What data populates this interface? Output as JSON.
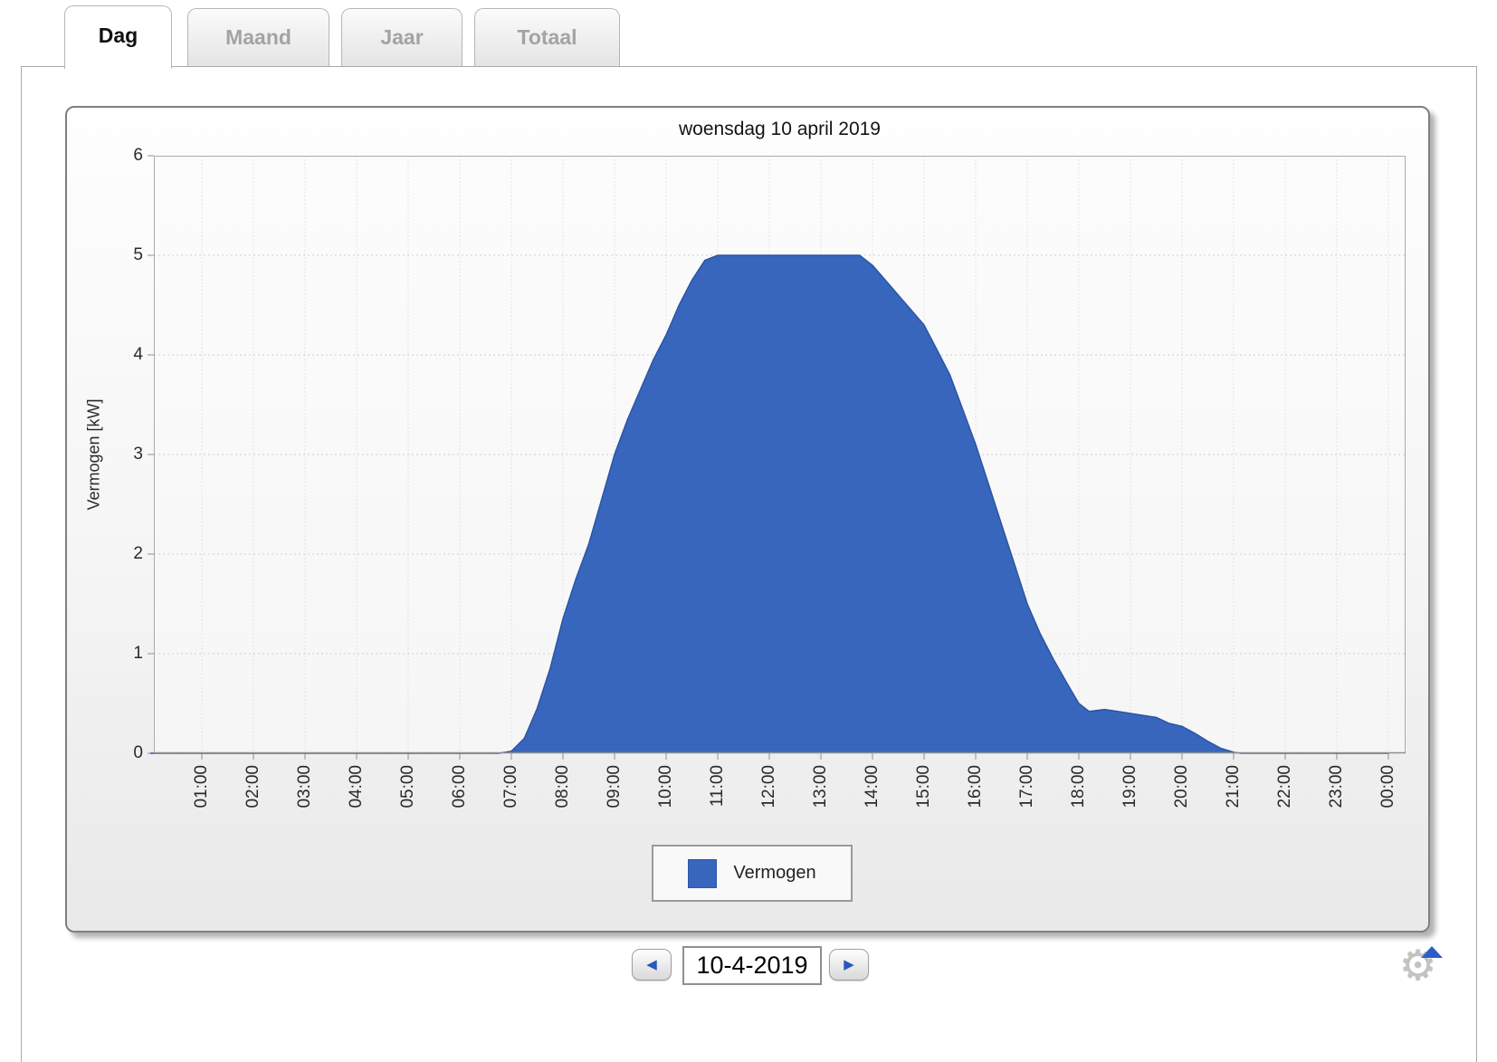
{
  "tabs": [
    {
      "label": "Dag",
      "active": true
    },
    {
      "label": "Maand",
      "active": false
    },
    {
      "label": "Jaar",
      "active": false
    },
    {
      "label": "Totaal",
      "active": false
    }
  ],
  "chart": {
    "title": "woensdag 10 april 2019",
    "y_axis": {
      "label": "Vermogen [kW]"
    },
    "legend": {
      "label": "Vermogen",
      "color": "#3866bd"
    }
  },
  "chart_data": {
    "type": "area",
    "title": "woensdag 10 april 2019",
    "xlabel": "",
    "ylabel": "Vermogen [kW]",
    "ylim": [
      0,
      6
    ],
    "x_unit": "hour_of_day",
    "grid": true,
    "legend_position": "bottom-center",
    "x_ticks": [
      "01:00",
      "02:00",
      "03:00",
      "04:00",
      "05:00",
      "06:00",
      "07:00",
      "08:00",
      "09:00",
      "10:00",
      "11:00",
      "12:00",
      "13:00",
      "14:00",
      "15:00",
      "16:00",
      "17:00",
      "18:00",
      "19:00",
      "20:00",
      "21:00",
      "22:00",
      "23:00",
      "00:00"
    ],
    "y_ticks": [
      "6",
      "5",
      "4",
      "3",
      "2",
      "1",
      "0"
    ],
    "series": [
      {
        "name": "Vermogen",
        "color": "#3866bd",
        "line_color": "#2b55a5",
        "points": [
          [
            0,
            0
          ],
          [
            1,
            0
          ],
          [
            2,
            0
          ],
          [
            3,
            0
          ],
          [
            4,
            0
          ],
          [
            5,
            0
          ],
          [
            6,
            0
          ],
          [
            6.75,
            0
          ],
          [
            7.0,
            0.02
          ],
          [
            7.25,
            0.15
          ],
          [
            7.5,
            0.45
          ],
          [
            7.75,
            0.85
          ],
          [
            8.0,
            1.35
          ],
          [
            8.25,
            1.75
          ],
          [
            8.5,
            2.1
          ],
          [
            8.75,
            2.55
          ],
          [
            9.0,
            3.0
          ],
          [
            9.25,
            3.35
          ],
          [
            9.5,
            3.65
          ],
          [
            9.75,
            3.95
          ],
          [
            10.0,
            4.2
          ],
          [
            10.25,
            4.5
          ],
          [
            10.5,
            4.75
          ],
          [
            10.75,
            4.95
          ],
          [
            11.0,
            5.0
          ],
          [
            13.75,
            5.0
          ],
          [
            14.0,
            4.9
          ],
          [
            14.25,
            4.75
          ],
          [
            14.5,
            4.6
          ],
          [
            14.75,
            4.45
          ],
          [
            15.0,
            4.3
          ],
          [
            15.25,
            4.05
          ],
          [
            15.5,
            3.8
          ],
          [
            15.75,
            3.45
          ],
          [
            16.0,
            3.1
          ],
          [
            16.25,
            2.7
          ],
          [
            16.5,
            2.3
          ],
          [
            16.75,
            1.9
          ],
          [
            17.0,
            1.5
          ],
          [
            17.25,
            1.2
          ],
          [
            17.5,
            0.95
          ],
          [
            17.75,
            0.72
          ],
          [
            18.0,
            0.5
          ],
          [
            18.2,
            0.42
          ],
          [
            18.5,
            0.44
          ],
          [
            18.75,
            0.42
          ],
          [
            19.0,
            0.4
          ],
          [
            19.5,
            0.36
          ],
          [
            19.75,
            0.3
          ],
          [
            20.0,
            0.27
          ],
          [
            20.25,
            0.2
          ],
          [
            20.5,
            0.12
          ],
          [
            20.75,
            0.05
          ],
          [
            21.0,
            0.01
          ],
          [
            21.15,
            0
          ],
          [
            22,
            0
          ],
          [
            23,
            0
          ],
          [
            24,
            0
          ]
        ]
      }
    ]
  },
  "date_nav": {
    "prev_icon": "◀",
    "next_icon": "▶",
    "value": "10-4-2019"
  },
  "icons": {
    "gear": "⚙"
  },
  "colors": {
    "area_fill": "#3866bd",
    "area_line": "#2b55a5",
    "grid_v": "#dcdcdc",
    "grid_h": "#cfcfcf",
    "plot_border": "#ababab",
    "axis": "#8f8f8f"
  }
}
